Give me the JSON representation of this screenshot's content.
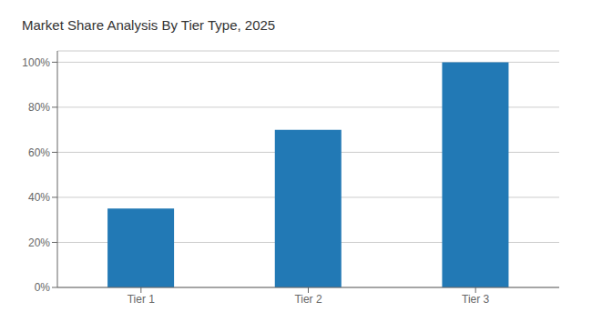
{
  "chart_data": {
    "type": "bar",
    "title": "Market Share Analysis By Tier Type, 2025",
    "categories": [
      "Tier 1",
      "Tier 2",
      "Tier 3"
    ],
    "values": [
      35,
      70,
      100
    ],
    "color": "#2279B5",
    "ylim": [
      0,
      105
    ],
    "yticks": [
      {
        "value": 0,
        "label": "0%"
      },
      {
        "value": 20,
        "label": "20%"
      },
      {
        "value": 40,
        "label": "40%"
      },
      {
        "value": 60,
        "label": "60%"
      },
      {
        "value": 80,
        "label": "80%"
      },
      {
        "value": 100,
        "label": "100%"
      }
    ],
    "grid": true
  }
}
